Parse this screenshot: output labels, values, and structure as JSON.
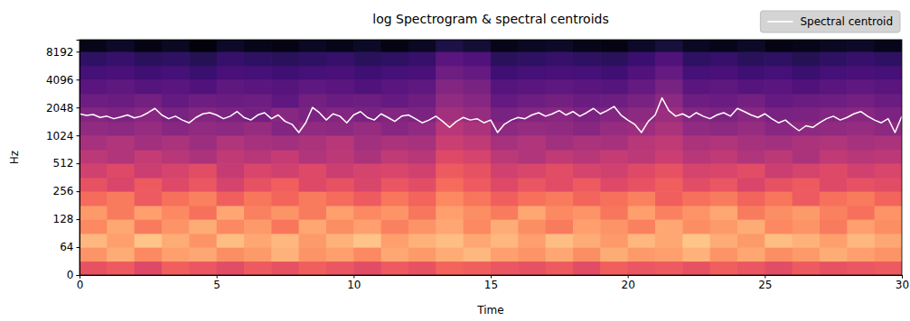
{
  "chart_data": {
    "type": "heatmap",
    "title": "log Spectrogram & spectral centroids",
    "x_label": "Time",
    "y_label": "Hz",
    "log": "y",
    "color": "magma",
    "legend": "above",
    "xlim": [
      0,
      30
    ],
    "xticks": [
      0,
      5,
      10,
      15,
      20,
      25,
      30
    ],
    "ylim": [
      0,
      11025
    ],
    "yticks": [
      0,
      64,
      128,
      256,
      512,
      1024,
      2048,
      4096,
      8192
    ],
    "x_bins": [
      0,
      1,
      2,
      3,
      4,
      5,
      6,
      7,
      8,
      9,
      10,
      11,
      12,
      13,
      14,
      15,
      16,
      17,
      18,
      19,
      20,
      21,
      22,
      23,
      24,
      25,
      26,
      27,
      28,
      29,
      30
    ],
    "y_bins": [
      0,
      32,
      64,
      90,
      128,
      180,
      256,
      360,
      512,
      720,
      1024,
      1450,
      2048,
      2900,
      4096,
      5800,
      8192,
      11025
    ],
    "zlim": [
      -80,
      0
    ],
    "cells": [
      [
        -30,
        -28,
        -32,
        -27,
        -29,
        -31,
        -28,
        -30,
        -27,
        -29,
        -31,
        -28,
        -30,
        -26,
        -27,
        -29,
        -30,
        -28,
        -31,
        -27,
        -29,
        -28,
        -30,
        -27,
        -29,
        -31,
        -28,
        -30,
        -29,
        -28
      ],
      [
        -18,
        -14,
        -20,
        -16,
        -15,
        -19,
        -17,
        -13,
        -18,
        -16,
        -20,
        -15,
        -17,
        -14,
        -12,
        -16,
        -18,
        -15,
        -19,
        -14,
        -17,
        -16,
        -13,
        -18,
        -15,
        -19,
        -17,
        -14,
        -16,
        -18
      ],
      [
        -12,
        -16,
        -10,
        -14,
        -18,
        -11,
        -15,
        -12,
        -17,
        -13,
        -10,
        -16,
        -13,
        -11,
        -15,
        -12,
        -16,
        -11,
        -14,
        -17,
        -12,
        -15,
        -10,
        -14,
        -17,
        -11,
        -13,
        -16,
        -12,
        -15
      ],
      [
        -20,
        -15,
        -22,
        -18,
        -14,
        -20,
        -17,
        -23,
        -15,
        -19,
        -16,
        -21,
        -18,
        -15,
        -20,
        -14,
        -19,
        -22,
        -16,
        -18,
        -21,
        -15,
        -19,
        -17,
        -14,
        -20,
        -18,
        -22,
        -16,
        -19
      ],
      [
        -17,
        -22,
        -16,
        -20,
        -24,
        -15,
        -21,
        -18,
        -22,
        -16,
        -20,
        -18,
        -23,
        -16,
        -19,
        -22,
        -15,
        -20,
        -18,
        -23,
        -16,
        -21,
        -18,
        -15,
        -22,
        -19,
        -17,
        -21,
        -24,
        -18
      ],
      [
        -25,
        -22,
        -28,
        -24,
        -21,
        -27,
        -23,
        -26,
        -22,
        -25,
        -28,
        -23,
        -26,
        -20,
        -23,
        -27,
        -24,
        -22,
        -26,
        -24,
        -21,
        -27,
        -24,
        -22,
        -26,
        -23,
        -28,
        -24,
        -22,
        -26
      ],
      [
        -30,
        -33,
        -28,
        -32,
        -29,
        -34,
        -30,
        -27,
        -32,
        -30,
        -33,
        -29,
        -31,
        -25,
        -28,
        -32,
        -29,
        -31,
        -28,
        -32,
        -30,
        -27,
        -31,
        -29,
        -33,
        -30,
        -28,
        -32,
        -30,
        -31
      ],
      [
        -35,
        -32,
        -36,
        -34,
        -31,
        -37,
        -33,
        -35,
        -32,
        -36,
        -34,
        -33,
        -35,
        -28,
        -30,
        -35,
        -33,
        -31,
        -34,
        -35,
        -32,
        -30,
        -34,
        -33,
        -31,
        -36,
        -34,
        -32,
        -35,
        -33
      ],
      [
        -39,
        -41,
        -37,
        -40,
        -42,
        -38,
        -40,
        -37,
        -41,
        -39,
        -42,
        -38,
        -40,
        -32,
        -34,
        -39,
        -41,
        -38,
        -40,
        -37,
        -39,
        -36,
        -40,
        -38,
        -41,
        -39,
        -42,
        -38,
        -40,
        -39
      ],
      [
        -43,
        -41,
        -44,
        -42,
        -45,
        -41,
        -43,
        -44,
        -42,
        -40,
        -44,
        -42,
        -43,
        -36,
        -38,
        -43,
        -41,
        -44,
        -42,
        -43,
        -40,
        -38,
        -42,
        -41,
        -43,
        -44,
        -42,
        -41,
        -43,
        -42
      ],
      [
        -47,
        -48,
        -46,
        -49,
        -47,
        -48,
        -46,
        -50,
        -47,
        -48,
        -46,
        -49,
        -47,
        -40,
        -42,
        -48,
        -46,
        -47,
        -49,
        -46,
        -45,
        -42,
        -47,
        -48,
        -46,
        -49,
        -48,
        -47,
        -46,
        -48
      ],
      [
        -50,
        -51,
        -49,
        -52,
        -50,
        -51,
        -53,
        -49,
        -51,
        -50,
        -52,
        -50,
        -51,
        -44,
        -46,
        -52,
        -50,
        -49,
        -51,
        -50,
        -48,
        -45,
        -50,
        -51,
        -49,
        -52,
        -51,
        -50,
        -49,
        -51
      ],
      [
        -54,
        -55,
        -53,
        -56,
        -54,
        -55,
        -54,
        -57,
        -53,
        -55,
        -54,
        -56,
        -54,
        -47,
        -49,
        -56,
        -54,
        -53,
        -55,
        -54,
        -52,
        -48,
        -54,
        -55,
        -53,
        -56,
        -55,
        -54,
        -53,
        -55
      ],
      [
        -58,
        -57,
        -59,
        -58,
        -60,
        -57,
        -58,
        -59,
        -57,
        -58,
        -60,
        -58,
        -57,
        -50,
        -52,
        -59,
        -58,
        -57,
        -58,
        -59,
        -56,
        -52,
        -58,
        -57,
        -59,
        -58,
        -60,
        -58,
        -57,
        -58
      ],
      [
        -62,
        -61,
        -63,
        -62,
        -64,
        -61,
        -62,
        -63,
        -62,
        -61,
        -63,
        -62,
        -61,
        -54,
        -56,
        -63,
        -62,
        -61,
        -62,
        -63,
        -60,
        -56,
        -62,
        -61,
        -63,
        -62,
        -64,
        -62,
        -61,
        -62
      ],
      [
        -66,
        -65,
        -67,
        -66,
        -68,
        -65,
        -66,
        -67,
        -66,
        -65,
        -67,
        -66,
        -65,
        -58,
        -60,
        -67,
        -66,
        -65,
        -66,
        -67,
        -64,
        -60,
        -66,
        -65,
        -67,
        -66,
        -68,
        -66,
        -65,
        -66
      ],
      [
        -76,
        -74,
        -77,
        -75,
        -78,
        -74,
        -76,
        -77,
        -75,
        -76,
        -74,
        -77,
        -75,
        -70,
        -72,
        -76,
        -75,
        -74,
        -76,
        -77,
        -74,
        -71,
        -75,
        -76,
        -74,
        -77,
        -76,
        -75,
        -74,
        -76
      ]
    ],
    "x": [
      0,
      0.25,
      0.5,
      0.75,
      1,
      1.25,
      1.5,
      1.75,
      2,
      2.25,
      2.5,
      2.75,
      3,
      3.25,
      3.5,
      3.75,
      4,
      4.25,
      4.5,
      4.75,
      5,
      5.25,
      5.5,
      5.75,
      6,
      6.25,
      6.5,
      6.75,
      7,
      7.25,
      7.5,
      7.75,
      8,
      8.25,
      8.5,
      8.75,
      9,
      9.25,
      9.5,
      9.75,
      10,
      10.25,
      10.5,
      10.75,
      11,
      11.25,
      11.5,
      11.75,
      12,
      12.25,
      12.5,
      12.75,
      13,
      13.25,
      13.5,
      13.75,
      14,
      14.25,
      14.5,
      14.75,
      15,
      15.25,
      15.5,
      15.75,
      16,
      16.25,
      16.5,
      16.75,
      17,
      17.25,
      17.5,
      17.75,
      18,
      18.25,
      18.5,
      18.75,
      19,
      19.25,
      19.5,
      19.75,
      20,
      20.25,
      20.5,
      20.75,
      21,
      21.25,
      21.5,
      21.75,
      22,
      22.25,
      22.5,
      22.75,
      23,
      23.25,
      23.5,
      23.75,
      24,
      24.25,
      24.5,
      24.75,
      25,
      25.25,
      25.5,
      25.75,
      26,
      26.25,
      26.5,
      26.75,
      27,
      27.25,
      27.5,
      27.75,
      28,
      28.25,
      28.5,
      28.75,
      29,
      29.25,
      29.5,
      29.75,
      30
    ],
    "series": [
      {
        "name": "Spectral centroid",
        "type": "line",
        "color": "#ffffff",
        "values": [
          1750,
          1680,
          1720,
          1600,
          1650,
          1550,
          1620,
          1700,
          1580,
          1650,
          1800,
          2000,
          1700,
          1550,
          1650,
          1500,
          1400,
          1600,
          1750,
          1800,
          1700,
          1550,
          1650,
          1850,
          1600,
          1500,
          1700,
          1800,
          1550,
          1700,
          1450,
          1350,
          1100,
          1400,
          2050,
          1800,
          1500,
          1750,
          1650,
          1400,
          1700,
          1850,
          1600,
          1500,
          1750,
          1600,
          1450,
          1650,
          1700,
          1550,
          1400,
          1500,
          1650,
          1450,
          1250,
          1450,
          1600,
          1500,
          1550,
          1400,
          1500,
          1100,
          1350,
          1500,
          1600,
          1550,
          1700,
          1800,
          1650,
          1750,
          1900,
          1700,
          1850,
          1650,
          1800,
          2000,
          1750,
          1900,
          2100,
          1700,
          1500,
          1350,
          1100,
          1450,
          1700,
          2600,
          1900,
          1650,
          1750,
          1600,
          1800,
          1650,
          1550,
          1700,
          1800,
          1650,
          2000,
          1850,
          1700,
          1600,
          1750,
          1550,
          1400,
          1500,
          1300,
          1150,
          1300,
          1250,
          1400,
          1550,
          1650,
          1500,
          1600,
          1750,
          1850,
          1650,
          1500,
          1400,
          1550,
          1100,
          1650
        ]
      }
    ]
  }
}
